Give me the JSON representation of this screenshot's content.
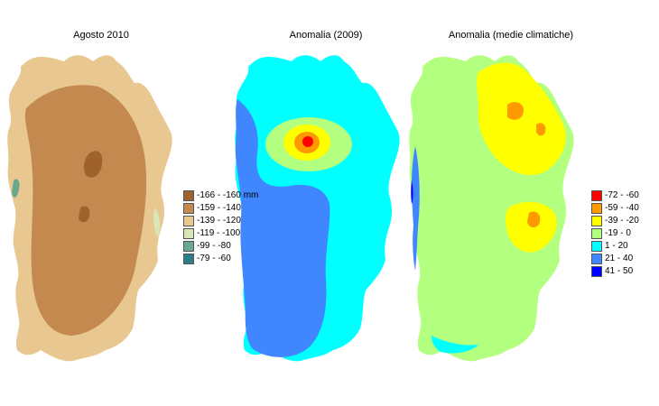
{
  "panels": [
    {
      "title": "Agosto 2010",
      "legend": [
        {
          "label": "-166 - -160 mm",
          "color": "#a0622d"
        },
        {
          "label": "-159 - -140",
          "color": "#c4894f"
        },
        {
          "label": "-139 - -120",
          "color": "#e8c890"
        },
        {
          "label": "-119 - -100",
          "color": "#d9e6b8"
        },
        {
          "label": "-99 - -80",
          "color": "#6aa88e"
        },
        {
          "label": "-79 - -60",
          "color": "#2b7e86"
        }
      ]
    },
    {
      "title": "Anomalia (2009)",
      "legend": []
    },
    {
      "title": "Anomalia (medie climatiche)",
      "legend": [
        {
          "label": "-72 - -60",
          "color": "#ff0000"
        },
        {
          "label": "-59 - -40",
          "color": "#ff9900"
        },
        {
          "label": "-39 - -20",
          "color": "#ffff00"
        },
        {
          "label": "-19 - 0",
          "color": "#b3ff80"
        },
        {
          "label": "1 - 20",
          "color": "#00ffff"
        },
        {
          "label": "21 - 40",
          "color": "#3f86ff"
        },
        {
          "label": "41 - 50",
          "color": "#0000ff"
        }
      ]
    }
  ]
}
